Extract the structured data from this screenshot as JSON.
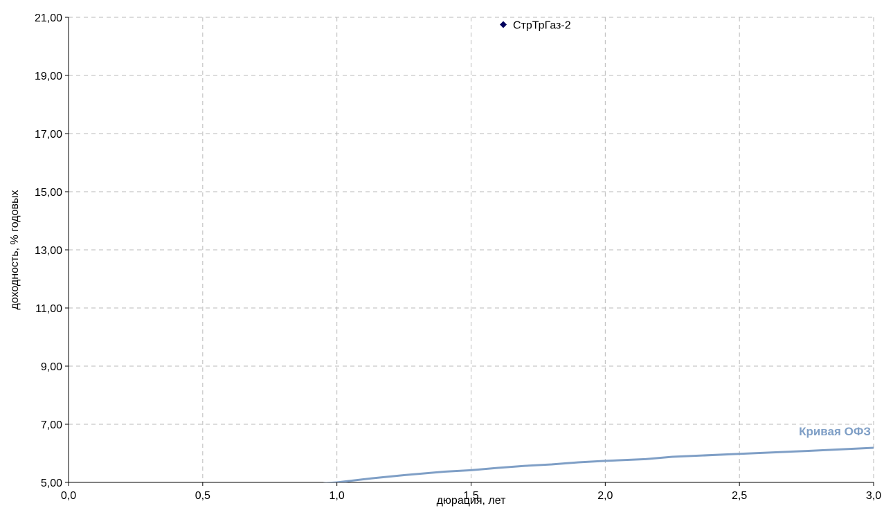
{
  "chart_data": {
    "type": "line",
    "xlabel": "дюрация, лет",
    "ylabel": "доходность, % годовых",
    "xlim": [
      0,
      3
    ],
    "ylim": [
      5,
      21
    ],
    "x_ticks": [
      0,
      0.5,
      1,
      1.5,
      2,
      2.5,
      3
    ],
    "x_tick_labels": [
      "0,0",
      "0,5",
      "1,0",
      "1,5",
      "2,0",
      "2,5",
      "3,0"
    ],
    "y_ticks": [
      5,
      7,
      9,
      11,
      13,
      15,
      17,
      19,
      21
    ],
    "y_tick_labels": [
      "5,00",
      "7,00",
      "9,00",
      "11,00",
      "13,00",
      "15,00",
      "17,00",
      "19,00",
      "21,00"
    ],
    "grid": true,
    "grid_style": "dashed",
    "series": [
      {
        "name": "Кривая ОФЗ",
        "kind": "line",
        "color": "#7f9fc6",
        "points": [
          [
            0.95,
            4.97
          ],
          [
            1.0,
            5.0
          ],
          [
            1.13,
            5.14
          ],
          [
            1.25,
            5.25
          ],
          [
            1.4,
            5.37
          ],
          [
            1.5,
            5.42
          ],
          [
            1.6,
            5.5
          ],
          [
            1.7,
            5.57
          ],
          [
            1.8,
            5.62
          ],
          [
            1.9,
            5.69
          ],
          [
            2.0,
            5.74
          ],
          [
            2.15,
            5.8
          ],
          [
            2.25,
            5.88
          ],
          [
            2.5,
            5.98
          ],
          [
            2.75,
            6.08
          ],
          [
            3.0,
            6.19
          ]
        ],
        "label": "Кривая ОФЗ"
      },
      {
        "name": "СтрТрГаз-2",
        "kind": "scatter",
        "color": "#00005c",
        "points": [
          [
            1.62,
            20.75
          ]
        ],
        "label": "СтрТрГаз-2"
      }
    ]
  }
}
